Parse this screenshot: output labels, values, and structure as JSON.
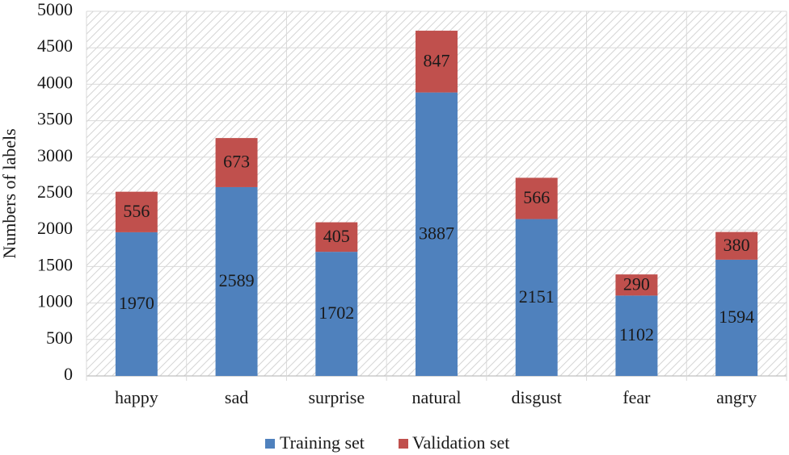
{
  "chart_data": {
    "type": "bar",
    "stacked": true,
    "categories": [
      "happy",
      "sad",
      "surprise",
      "natural",
      "disgust",
      "fear",
      "angry"
    ],
    "series": [
      {
        "name": "Training set",
        "values": [
          1970,
          2589,
          1702,
          3887,
          2151,
          1102,
          1594
        ],
        "color": "#4F81BD"
      },
      {
        "name": "Validation set",
        "values": [
          556,
          673,
          405,
          847,
          566,
          290,
          380
        ],
        "color": "#C0504D"
      }
    ],
    "xlabel": "",
    "ylabel": "Numbers of labels",
    "ylim": [
      0,
      5000
    ],
    "yticks": [
      0,
      500,
      1000,
      1500,
      2000,
      2500,
      3000,
      3500,
      4000,
      4500,
      5000
    ],
    "grid": true,
    "data_labels": true,
    "legend": "bottom",
    "background": "diagonal-hatch",
    "colors": {
      "hatch": "#d4d4d4",
      "gridline": "#d9d9d9",
      "text": "#1a1a1a"
    }
  }
}
